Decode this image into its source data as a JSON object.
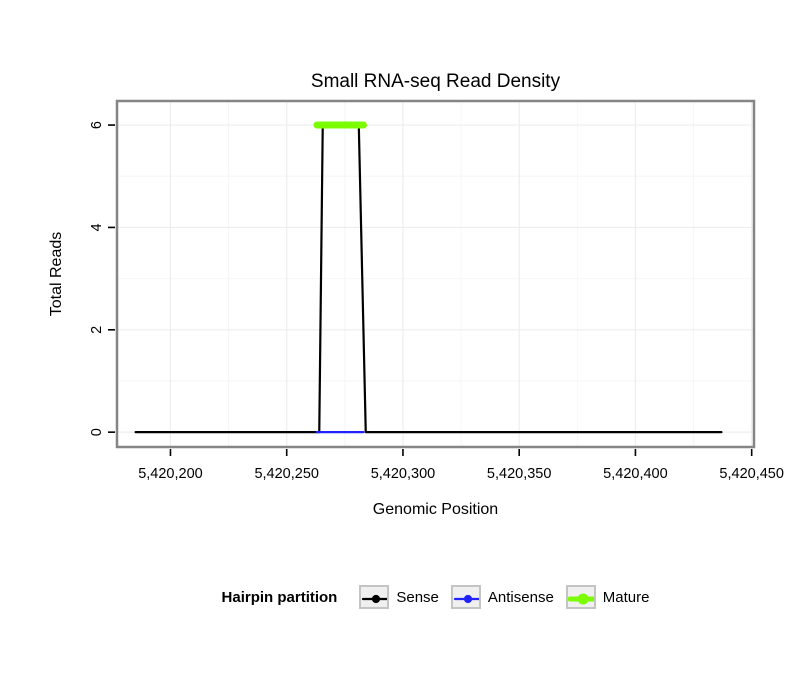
{
  "page": {
    "background": "#FFFFFF"
  },
  "chart_data": {
    "type": "line",
    "title": "Small RNA-seq Read Density",
    "xlabel": "Genomic Position",
    "ylabel": "Total Reads",
    "xlim": [
      5420177,
      5420451
    ],
    "ylim": [
      -0.29,
      6.47
    ],
    "x_ticks": [
      5420200,
      5420250,
      5420300,
      5420350,
      5420400,
      5420450
    ],
    "x_tick_labels": [
      "5,420,200",
      "5,420,250",
      "5,420,300",
      "5,420,350",
      "5,420,400",
      "5,420,450"
    ],
    "x_minor_ticks": [
      5420225,
      5420275,
      5420325,
      5420375,
      5420425
    ],
    "y_ticks": [
      0,
      2,
      4,
      6
    ],
    "y_tick_labels": [
      "0",
      "2",
      "4",
      "6"
    ],
    "y_minor_ticks": [
      1,
      3,
      5
    ],
    "grid": true,
    "legend_position": "bottom",
    "panel_border_color": "#858585",
    "grid_major_color": "#EDEDED",
    "grid_minor_color": "#F6F6F6",
    "series": [
      {
        "name": "Sense",
        "color": "#000000",
        "line_width": 2.2,
        "points": [
          [
            5420185,
            0
          ],
          [
            5420264,
            0
          ],
          [
            5420265.5,
            6
          ],
          [
            5420281,
            6
          ],
          [
            5420284,
            0
          ],
          [
            5420437,
            0
          ]
        ]
      },
      {
        "name": "Antisense",
        "color": "#2222FF",
        "line_width": 2.2,
        "points": [
          [
            5420263,
            0
          ],
          [
            5420283,
            0
          ]
        ]
      },
      {
        "name": "Mature",
        "color": "#7CFC00",
        "line_width": 7,
        "points": [
          [
            5420263,
            6
          ],
          [
            5420283,
            6
          ]
        ]
      }
    ],
    "legend": {
      "title": "Hairpin partition",
      "entries": [
        {
          "label": "Sense",
          "color": "#000000",
          "line_width": 2.2
        },
        {
          "label": "Antisense",
          "color": "#2222FF",
          "line_width": 2.2
        },
        {
          "label": "Mature",
          "color": "#7CFC00",
          "line_width": 5
        }
      ]
    }
  }
}
